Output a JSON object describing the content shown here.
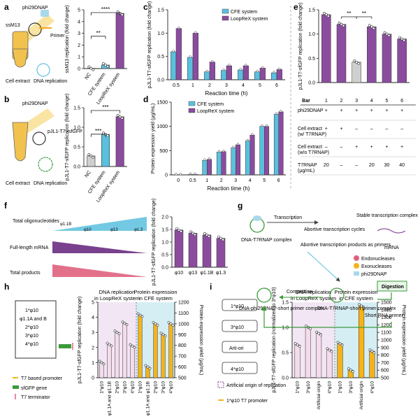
{
  "colors": {
    "purple": "#8B4C9E",
    "blue": "#5BC0DE",
    "gray": "#CFCFCF",
    "yellow": "#F2C24E",
    "orange": "#F5B318",
    "pink": "#F6DCEB",
    "lightblue": "#D5EEF4",
    "lightpurple": "#F2E6F4",
    "pink_red": "#E0607E"
  },
  "panel_labels": [
    "a",
    "b",
    "c",
    "d",
    "e",
    "f",
    "g",
    "h",
    "i"
  ],
  "schematic": {
    "phi29": "phi29DNAP",
    "ssm13": "ssM13",
    "primer": "Primer",
    "cell_extract": "Cell extract",
    "dna_replication": "DNA replication",
    "pjl1": "pJL1-T7 -sfGFP"
  },
  "chart_data": [
    {
      "id": "a",
      "type": "bar",
      "ylabel": "ssM13 replication (fold change)",
      "categories": [
        "NC",
        "CFE system",
        "LoopReX system"
      ],
      "values": [
        0.02,
        0.3,
        4.7
      ],
      "ylim": [
        0,
        5
      ],
      "yticks": [
        "0",
        "1",
        "2",
        "3",
        "4",
        "5"
      ],
      "significance": [
        "**",
        "****"
      ]
    },
    {
      "id": "b",
      "type": "bar",
      "ylabel": "pJL1-T7-sfGFP replication (fold change)",
      "categories": [
        "NC",
        "CFE system",
        "LoopReX system"
      ],
      "values": [
        0.27,
        0.82,
        1.27
      ],
      "ylim": [
        0,
        1.5
      ],
      "yticks": [
        "0.0",
        "0.5",
        "1.0",
        "1.5"
      ],
      "significance": [
        "***",
        "***"
      ]
    },
    {
      "id": "c",
      "type": "bar",
      "ylabel": "pJL1-T7-sfGFP replication (fold change)",
      "xlabel": "Reaction time (h)",
      "categories": [
        "0.5",
        "1",
        "2",
        "3",
        "4",
        "5",
        "6"
      ],
      "series": [
        {
          "name": "CFE system",
          "values": [
            0.6,
            0.48,
            0.17,
            0.2,
            0.21,
            0.17,
            0.15
          ]
        },
        {
          "name": "LoopReX system",
          "values": [
            1.1,
            1.0,
            0.38,
            0.3,
            0.3,
            0.25,
            0.22
          ]
        }
      ],
      "ylim": [
        0,
        1.5
      ],
      "yticks": [
        "0.0",
        "0.5",
        "1.0",
        "1.5"
      ]
    },
    {
      "id": "d",
      "type": "bar",
      "ylabel": "Protein expression yield (μg/mL)",
      "xlabel": "Reaction time (h)",
      "categories": [
        "0",
        "0.5",
        "1",
        "2",
        "3",
        "4",
        "5",
        "6"
      ],
      "series": [
        {
          "name": "CFE system",
          "values": [
            0,
            10,
            300,
            470,
            560,
            700,
            1000,
            1250
          ]
        },
        {
          "name": "LoopReX system",
          "values": [
            0,
            10,
            320,
            480,
            620,
            820,
            1000,
            1300
          ]
        }
      ],
      "ylim": [
        0,
        1500
      ],
      "yticks": [
        "0",
        "500",
        "1000",
        "1500"
      ]
    },
    {
      "id": "e",
      "type": "bar",
      "ylabel": "pJL1-T7-sfGFP replication (fold change)",
      "categories": [
        "1",
        "2",
        "3",
        "4",
        "5",
        "6"
      ],
      "values": [
        1.4,
        1.2,
        0.42,
        1.15,
        1.0,
        0.9
      ],
      "ylim": [
        0,
        1.5
      ],
      "yticks": [
        "0.0",
        "0.5",
        "1.0",
        "1.5"
      ],
      "significance": [
        "**",
        "**"
      ],
      "table": {
        "header": "Bar",
        "rows": [
          {
            "label": "phi29DNAP",
            "cells": [
              "+",
              "+",
              "+",
              "+",
              "+",
              "+"
            ]
          },
          {
            "label": "Cell extract (w/ T7RNAP)",
            "cells": [
              "+",
              "+",
              "–",
              "–",
              "–",
              "–"
            ]
          },
          {
            "label": "Cell extract (w/o T7RNAP)",
            "cells": [
              "–",
              "–",
              "+",
              "+",
              "+",
              "+"
            ]
          },
          {
            "label": "T7RNAP (μg/mL)",
            "cells": [
              "20",
              "–",
              "–",
              "20",
              "30",
              "40"
            ]
          }
        ]
      }
    },
    {
      "id": "f",
      "type": "bar",
      "ylabel": "pJL1-T7-sfGFP replication (fold change)",
      "categories": [
        "φ10",
        "φ13",
        "φ1.1B",
        "φ1.3"
      ],
      "values": [
        1.48,
        1.35,
        1.28,
        1.15
      ],
      "ylim": [
        0,
        2.0
      ],
      "yticks": [
        "0.0",
        "0.5",
        "1.0",
        "1.5",
        "2.0"
      ]
    },
    {
      "id": "h",
      "type": "bar",
      "ylabel_left": "pJL1-T7-sfGFP replication (fold change)",
      "ylabel_right": "Protein expression yield (μg/mL)",
      "section_titles": [
        "DNA replication in LoopReX system",
        "Protein expression in CFE system"
      ],
      "categories": [
        "1*φ10",
        "φ1.1A and φ1.1B",
        "2*φ10",
        "3*φ10",
        "4*φ10"
      ],
      "replication": [
        1.0,
        2.2,
        3.0,
        3.6,
        2.1
      ],
      "expression": [
        1080,
        600,
        1000,
        900,
        1000
      ],
      "ylim_left": [
        0,
        5
      ],
      "yticks_left": [
        "0",
        "1",
        "2",
        "3",
        "4",
        "5"
      ],
      "ylim_right": [
        500,
        1200
      ],
      "yticks_right": [
        "500",
        "600",
        "700",
        "800",
        "900",
        "1000",
        "1100",
        "1200"
      ]
    },
    {
      "id": "i",
      "type": "bar",
      "ylabel_left": "pJL1-T7-sfGFP replication (normalized to 3*φ10)",
      "ylabel_right": "Protein expression yield (μg/mL)",
      "section_titles": [
        "DNA replication in LoopReX system",
        "Protein expression in CFE system"
      ],
      "categories": [
        "1*φ10",
        "3*φ10",
        "Artificial origin",
        "4*φ10"
      ],
      "replication": [
        0.65,
        1.0,
        0.88,
        0.55
      ],
      "expression": [
        950,
        600,
        1450,
        850
      ],
      "ylim_left": [
        0,
        1.5
      ],
      "yticks_left": [
        "0.0",
        "0.5",
        "1.0",
        "1.5"
      ],
      "ylim_right": [
        500,
        1500
      ],
      "yticks_right": [
        "500",
        "600",
        "700",
        "800",
        "900",
        "1000",
        "1100",
        "1200",
        "1300",
        "1400",
        "1500"
      ]
    }
  ],
  "panel_f": {
    "rows": [
      "Total oligonucleotides",
      "Full-length mRNA",
      "Total products"
    ],
    "promoters": [
      "φ1.1B",
      "φ10",
      "φ13",
      "φ1.3"
    ]
  },
  "panel_g": {
    "complex1": "DNA-T7RNAP complex",
    "transcription": "Transcription",
    "cycles": "Abortive transcription cycles",
    "stable": "Stable transcription complex",
    "mrna": "mRNA",
    "abortive_products": "Abortive transcription products as primers",
    "endonucleases": "Endonucleases",
    "exonucleases": "Exonucleases",
    "phi29": "phi29DNAP",
    "digestion": "Digestion",
    "short_primer": "Short RNA primer",
    "competition": "Competition",
    "complex_phi29": "DNA-phi29DNAP-short primer complex",
    "complex_t7": "DNA-T7RNAP-short primer complex"
  },
  "panel_h_schematic": {
    "inserts": [
      "1*φ10",
      "φ1.1A and B",
      "2*φ10",
      "3*φ10",
      "4*φ10"
    ],
    "legend": [
      "T7 based promoter",
      "sfGFP gene",
      "T7 terminator"
    ]
  },
  "panel_i_schematic": {
    "constructs": [
      "1*φ10",
      "3*φ10",
      "Arti-ori",
      "4*φ10"
    ],
    "legend": [
      "Artificial origin of replication",
      "1*φ10 T7 promoter"
    ]
  }
}
